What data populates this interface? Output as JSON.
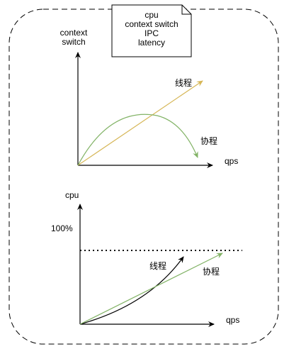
{
  "note": {
    "lines": [
      "cpu",
      "context switch",
      "IPC",
      "latency"
    ]
  },
  "top_chart": {
    "y_axis_label_line1": "context",
    "y_axis_label_line2": "switch",
    "x_axis_label": "qps",
    "thread_label": "线程",
    "coroutine_label": "协程"
  },
  "bottom_chart": {
    "y_axis_label": "cpu",
    "limit_label": "100%",
    "x_axis_label": "qps",
    "thread_label": "线程",
    "coroutine_label": "协程"
  },
  "colors": {
    "thread_top": "#d6b656",
    "coroutine": "#82b366",
    "thread_bottom": "#000000",
    "axes": "#000000",
    "frame": "#000000"
  }
}
